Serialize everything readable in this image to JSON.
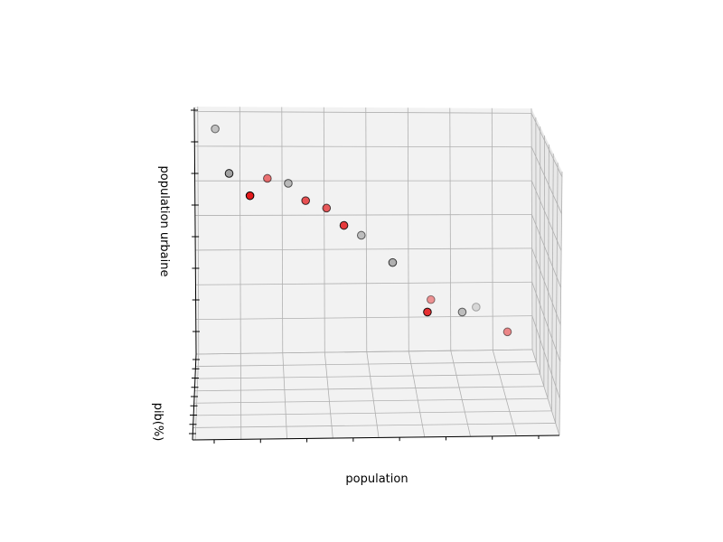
{
  "chart_data": {
    "type": "scatter",
    "projection": "3d",
    "xlabel": "population",
    "ylabel": "pib(%)",
    "zlabel": "population urbaine",
    "grid": true,
    "tick_labels_shown": false,
    "colors": {
      "red": "#e41a1c",
      "gray": "#999999",
      "pane": "#f2f2f2",
      "grid": "#b0b0b0",
      "edge": "#000000"
    },
    "points": [
      {
        "x": 0.06,
        "z": 0.91,
        "color": "gray",
        "depth": 0.55
      },
      {
        "x": 0.1,
        "z": 0.73,
        "color": "gray",
        "depth": 0.9
      },
      {
        "x": 0.21,
        "z": 0.71,
        "color": "red",
        "depth": 0.6
      },
      {
        "x": 0.27,
        "z": 0.69,
        "color": "gray",
        "depth": 0.65
      },
      {
        "x": 0.16,
        "z": 0.64,
        "color": "red",
        "depth": 1.0
      },
      {
        "x": 0.32,
        "z": 0.62,
        "color": "red",
        "depth": 0.75
      },
      {
        "x": 0.38,
        "z": 0.59,
        "color": "red",
        "depth": 0.7
      },
      {
        "x": 0.48,
        "z": 0.48,
        "color": "gray",
        "depth": 0.6
      },
      {
        "x": 0.43,
        "z": 0.52,
        "color": "red",
        "depth": 0.85
      },
      {
        "x": 0.57,
        "z": 0.37,
        "color": "gray",
        "depth": 0.75
      },
      {
        "x": 0.68,
        "z": 0.22,
        "color": "red",
        "depth": 0.45
      },
      {
        "x": 0.67,
        "z": 0.17,
        "color": "red",
        "depth": 0.9
      },
      {
        "x": 0.77,
        "z": 0.17,
        "color": "gray",
        "depth": 0.6
      },
      {
        "x": 0.81,
        "z": 0.19,
        "color": "gray",
        "depth": 0.3
      },
      {
        "x": 0.9,
        "z": 0.09,
        "color": "red",
        "depth": 0.5
      }
    ]
  }
}
